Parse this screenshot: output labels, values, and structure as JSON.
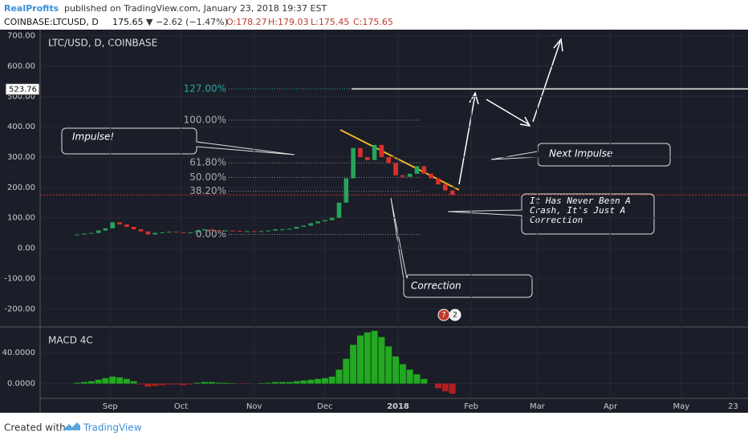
{
  "header": {
    "author": "RealProfits",
    "published": "published on TradingView.com, January 23, 2018 19:37 EST",
    "symbol": "COINBASE:LTCUSD, D",
    "last": "175.65",
    "change": "▼ −2.62 (−1.47%)",
    "ohlc": [
      "O:178.27",
      "H:179.03",
      "L:175.45",
      "C:175.65"
    ]
  },
  "footer": {
    "created": "Created with",
    "brand": "TradingView"
  },
  "chart_data": [
    {
      "type": "candlestick",
      "title": "LTC/USD, D, COINBASE",
      "x": [
        17,
        20,
        23,
        26,
        29,
        32,
        35,
        38,
        41,
        44,
        47,
        50,
        53,
        56,
        59,
        62,
        65,
        68,
        71,
        74,
        77,
        80,
        83,
        86,
        89,
        92,
        95,
        98,
        101,
        104,
        107,
        110,
        113,
        116,
        119,
        122,
        125,
        128,
        131,
        134,
        137,
        140,
        143,
        146,
        149,
        152,
        155,
        158,
        161,
        164,
        167,
        170,
        173,
        176
      ],
      "values": [
        45,
        48,
        50,
        58,
        65,
        85,
        78,
        70,
        62,
        55,
        45,
        50,
        52,
        54,
        52,
        50,
        52,
        58,
        62,
        58,
        56,
        58,
        57,
        55,
        56,
        54,
        56,
        58,
        62,
        62,
        64,
        70,
        74,
        82,
        88,
        92,
        100,
        150,
        230,
        330,
        300,
        290,
        340,
        300,
        280,
        240,
        235,
        245,
        270,
        245,
        230,
        210,
        190,
        175.65
      ],
      "up_color": "#26a65b",
      "down_color": "#d9302c",
      "xlim": [
        1.3,
        301.3
      ],
      "xticks": [
        {
          "value": 31,
          "label": "Sep"
        },
        {
          "value": 61,
          "label": "Oct"
        },
        {
          "value": 92,
          "label": "Nov"
        },
        {
          "value": 122,
          "label": "Dec"
        },
        {
          "value": 153,
          "label": "2018"
        },
        {
          "value": 184,
          "label": "Feb"
        },
        {
          "value": 212,
          "label": "Mar"
        },
        {
          "value": 243,
          "label": "Apr"
        },
        {
          "value": 273,
          "label": "May"
        },
        {
          "value": 295,
          "label": "23"
        }
      ],
      "ylim": [
        -260,
        720
      ],
      "yticks": [
        {
          "value": 700,
          "label": "700.00"
        },
        {
          "value": 600,
          "label": "600.00"
        },
        {
          "value": 500,
          "label": "500.00"
        },
        {
          "value": 400,
          "label": "400.00"
        },
        {
          "value": 300,
          "label": "300.00"
        },
        {
          "value": 200,
          "label": "200.00"
        },
        {
          "value": 100,
          "label": "100.00"
        },
        {
          "value": 0,
          "label": "0.00"
        },
        {
          "value": -100,
          "label": "-100.00"
        },
        {
          "value": -200,
          "label": "-200.00"
        }
      ],
      "price_marker": {
        "value": 523.76,
        "label": "523.76"
      },
      "current_price": 175.65,
      "fib": [
        {
          "value": 525,
          "label": "127.00%"
        },
        {
          "value": 422,
          "label": "100.00%"
        },
        {
          "value": 281,
          "label": "61.80%"
        },
        {
          "value": 233,
          "label": "50.00%"
        },
        {
          "value": 188,
          "label": "38.20%"
        },
        {
          "value": 45,
          "label": "0.00%"
        }
      ],
      "annotations": [
        "Impulse!",
        "Next Impulse",
        "It Has Never Been A Crash, It's Just A Correction",
        "Correction"
      ],
      "events": [
        "7",
        "2"
      ]
    },
    {
      "type": "histogram",
      "title": "MACD 4C",
      "values": [
        1,
        2,
        3,
        5,
        7,
        9,
        8,
        6,
        3,
        -1,
        -4,
        -3,
        -2,
        -1,
        -1,
        -2,
        -1,
        1,
        2,
        2,
        1,
        1,
        0.5,
        -0.5,
        -0.5,
        0,
        0.5,
        1,
        2,
        2,
        2,
        3,
        4,
        5,
        6,
        7,
        9,
        18,
        32,
        50,
        62,
        66,
        68,
        60,
        48,
        35,
        25,
        18,
        12,
        6,
        0,
        -6,
        -10,
        -13
      ],
      "up_color": "#22b81e",
      "down_color": "#c21f1f",
      "ylim": [
        -19,
        73
      ],
      "yticks": [
        {
          "value": 40,
          "label": "40.0000"
        },
        {
          "value": 0,
          "label": "0.0000"
        }
      ]
    }
  ]
}
